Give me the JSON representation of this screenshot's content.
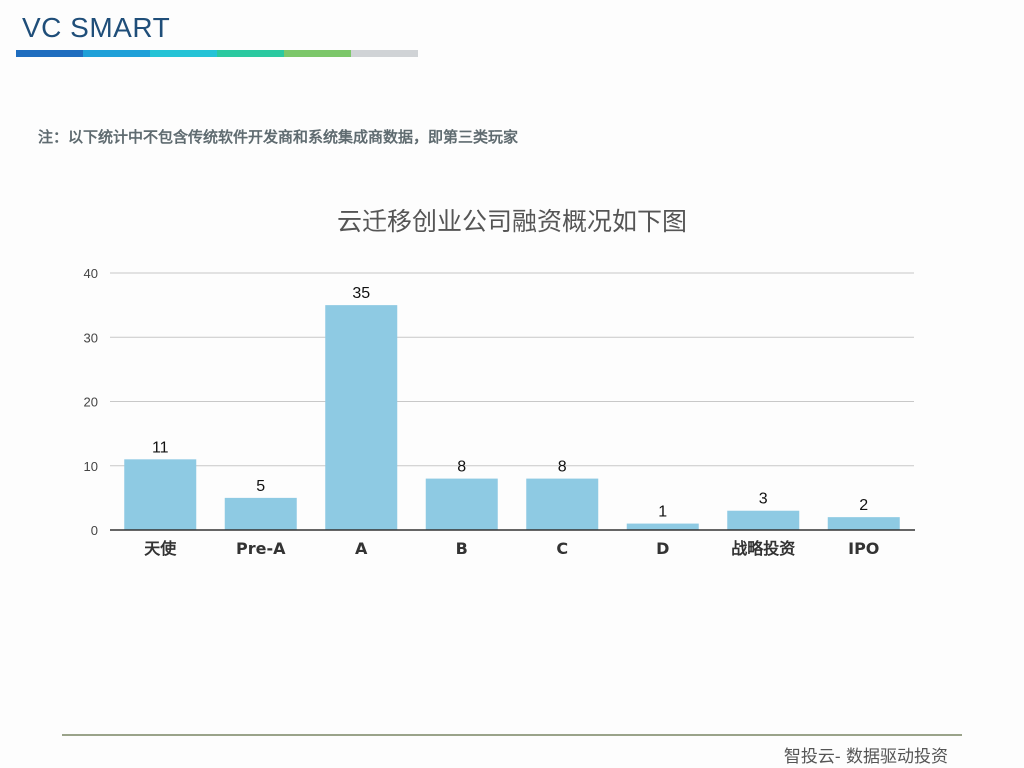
{
  "header": {
    "brand": "VC SMART"
  },
  "stripe_colors": [
    "#1f6dbf",
    "#1fa0d8",
    "#25c3d6",
    "#2bc9a0",
    "#7cc76a",
    "#d0d3d6"
  ],
  "note": "注：以下统计中不包含传统软件开发商和系统集成商数据，即第三类玩家",
  "footer": {
    "text": "智投云-  数据驱动投资"
  },
  "colors": {
    "bar": "#8ecae3",
    "grid": "#c8c8c8",
    "axis": "#333333"
  },
  "chart_data": {
    "type": "bar",
    "title": "云迁移创业公司融资概况如下图",
    "categories": [
      "天使",
      "Pre-A",
      "A",
      "B",
      "C",
      "D",
      "战略投资",
      "IPO"
    ],
    "values": [
      11,
      5,
      35,
      8,
      8,
      1,
      3,
      2
    ],
    "ylim": [
      0,
      40
    ],
    "yticks": [
      0,
      10,
      20,
      30,
      40
    ],
    "xlabel": "",
    "ylabel": "",
    "grid": true,
    "data_labels": true
  }
}
